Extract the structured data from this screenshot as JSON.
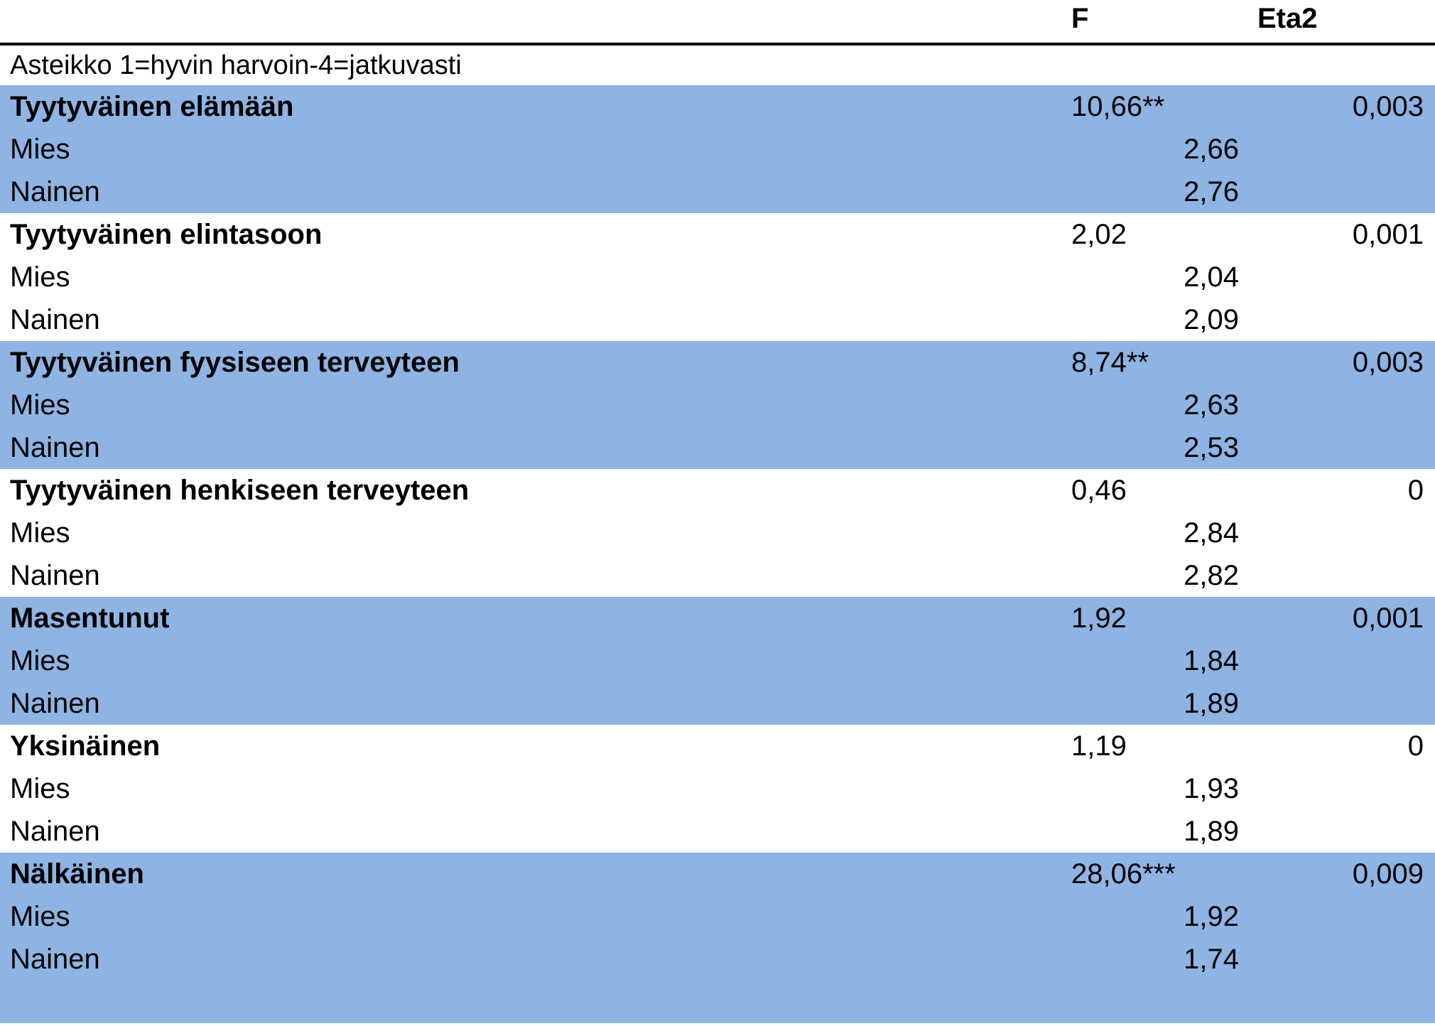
{
  "header": {
    "col_f": "F",
    "col_eta": "Eta2"
  },
  "scale_note": "Asteikko 1=hyvin harvoin-4=jatkuvasti",
  "colors": {
    "shade": "#8eb4e3"
  },
  "groups": [
    {
      "title": "Tyytyväinen elämään",
      "f": "10,66**",
      "eta": "0,003",
      "shaded": true,
      "rows": [
        {
          "label": "Mies",
          "mean": "2,66"
        },
        {
          "label": "Nainen",
          "mean": "2,76"
        }
      ]
    },
    {
      "title": "Tyytyväinen elintasoon",
      "f": "2,02",
      "eta": "0,001",
      "shaded": false,
      "rows": [
        {
          "label": "Mies",
          "mean": "2,04"
        },
        {
          "label": "Nainen",
          "mean": "2,09"
        }
      ]
    },
    {
      "title": "Tyytyväinen fyysiseen terveyteen",
      "f": "8,74**",
      "eta": "0,003",
      "shaded": true,
      "rows": [
        {
          "label": "Mies",
          "mean": "2,63"
        },
        {
          "label": "Nainen",
          "mean": "2,53"
        }
      ]
    },
    {
      "title": "Tyytyväinen henkiseen terveyteen",
      "f": "0,46",
      "eta": "0",
      "shaded": false,
      "rows": [
        {
          "label": "Mies",
          "mean": "2,84"
        },
        {
          "label": "Nainen",
          "mean": "2,82"
        }
      ]
    },
    {
      "title": "Masentunut",
      "f": "1,92",
      "eta": "0,001",
      "shaded": true,
      "rows": [
        {
          "label": "Mies",
          "mean": "1,84"
        },
        {
          "label": "Nainen",
          "mean": "1,89"
        }
      ]
    },
    {
      "title": "Yksinäinen",
      "f": "1,19",
      "eta": "0",
      "shaded": false,
      "rows": [
        {
          "label": "Mies",
          "mean": "1,93"
        },
        {
          "label": "Nainen",
          "mean": "1,89"
        }
      ]
    },
    {
      "title": "Nälkäinen",
      "f": "28,06***",
      "eta": "0,009",
      "shaded": true,
      "rows": [
        {
          "label": "Mies",
          "mean": "1,92"
        },
        {
          "label": "Nainen",
          "mean": "1,74"
        }
      ]
    }
  ]
}
